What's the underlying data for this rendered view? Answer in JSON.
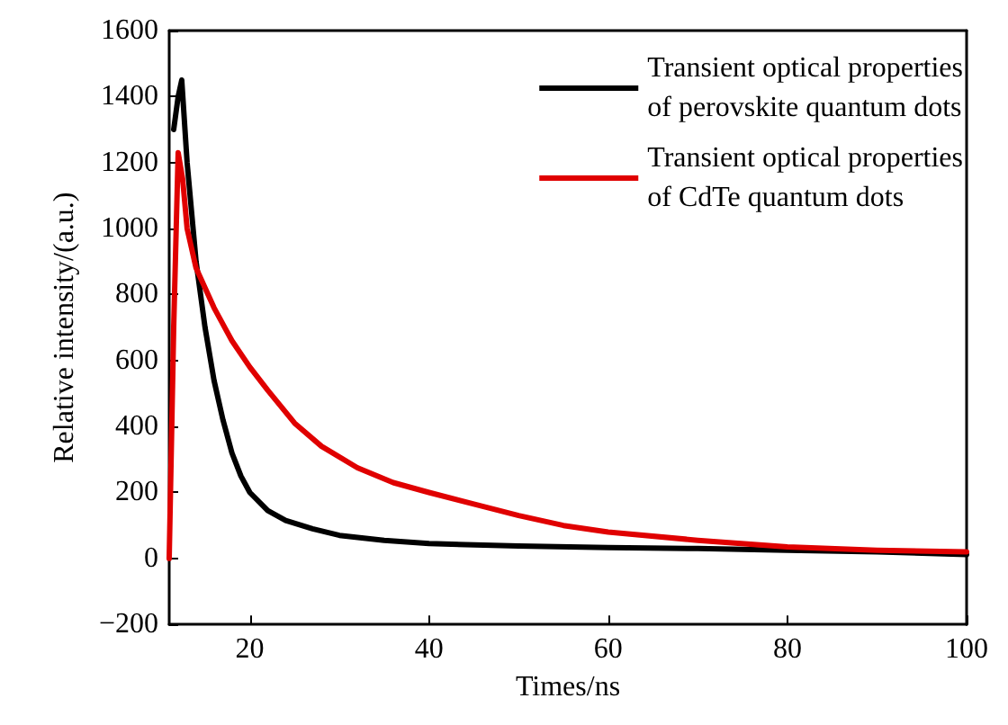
{
  "chart_data": {
    "type": "line",
    "xlabel": "Times/ns",
    "ylabel": "Relative intensity/(a.u.)",
    "xlim": [
      11,
      100
    ],
    "xticks": [
      20,
      40,
      60,
      80,
      100
    ],
    "ylim": [
      -200,
      1600
    ],
    "yticks": [
      {
        "value": -200,
        "label": "−200"
      },
      0,
      200,
      400,
      600,
      800,
      1000,
      1200,
      1400,
      1600
    ],
    "grid": false,
    "legend": "top right",
    "marker": "none",
    "line_style": "solid",
    "series": [
      {
        "name": "Transient optical properties\nof perovskite quantum dots",
        "color": "#000000",
        "x": [
          11.5,
          12,
          12.4,
          13,
          14,
          15,
          16,
          17,
          18,
          19,
          20,
          22,
          24,
          27,
          30,
          35,
          40,
          50,
          60,
          70,
          80,
          90,
          100
        ],
        "values": [
          1300,
          1400,
          1450,
          1200,
          900,
          700,
          540,
          420,
          320,
          250,
          200,
          145,
          115,
          90,
          70,
          55,
          45,
          38,
          33,
          30,
          25,
          20,
          12
        ]
      },
      {
        "name": "Transient optical properties\nof CdTe quantum dots",
        "color": "#e00000",
        "x": [
          11,
          11.5,
          12,
          12.5,
          13,
          14,
          16,
          18,
          20,
          22,
          25,
          28,
          32,
          36,
          40,
          45,
          50,
          55,
          60,
          70,
          80,
          90,
          100
        ],
        "values": [
          0,
          700,
          1230,
          1150,
          1000,
          880,
          760,
          660,
          580,
          510,
          410,
          340,
          275,
          230,
          200,
          165,
          130,
          100,
          80,
          55,
          35,
          25,
          20
        ]
      }
    ]
  }
}
